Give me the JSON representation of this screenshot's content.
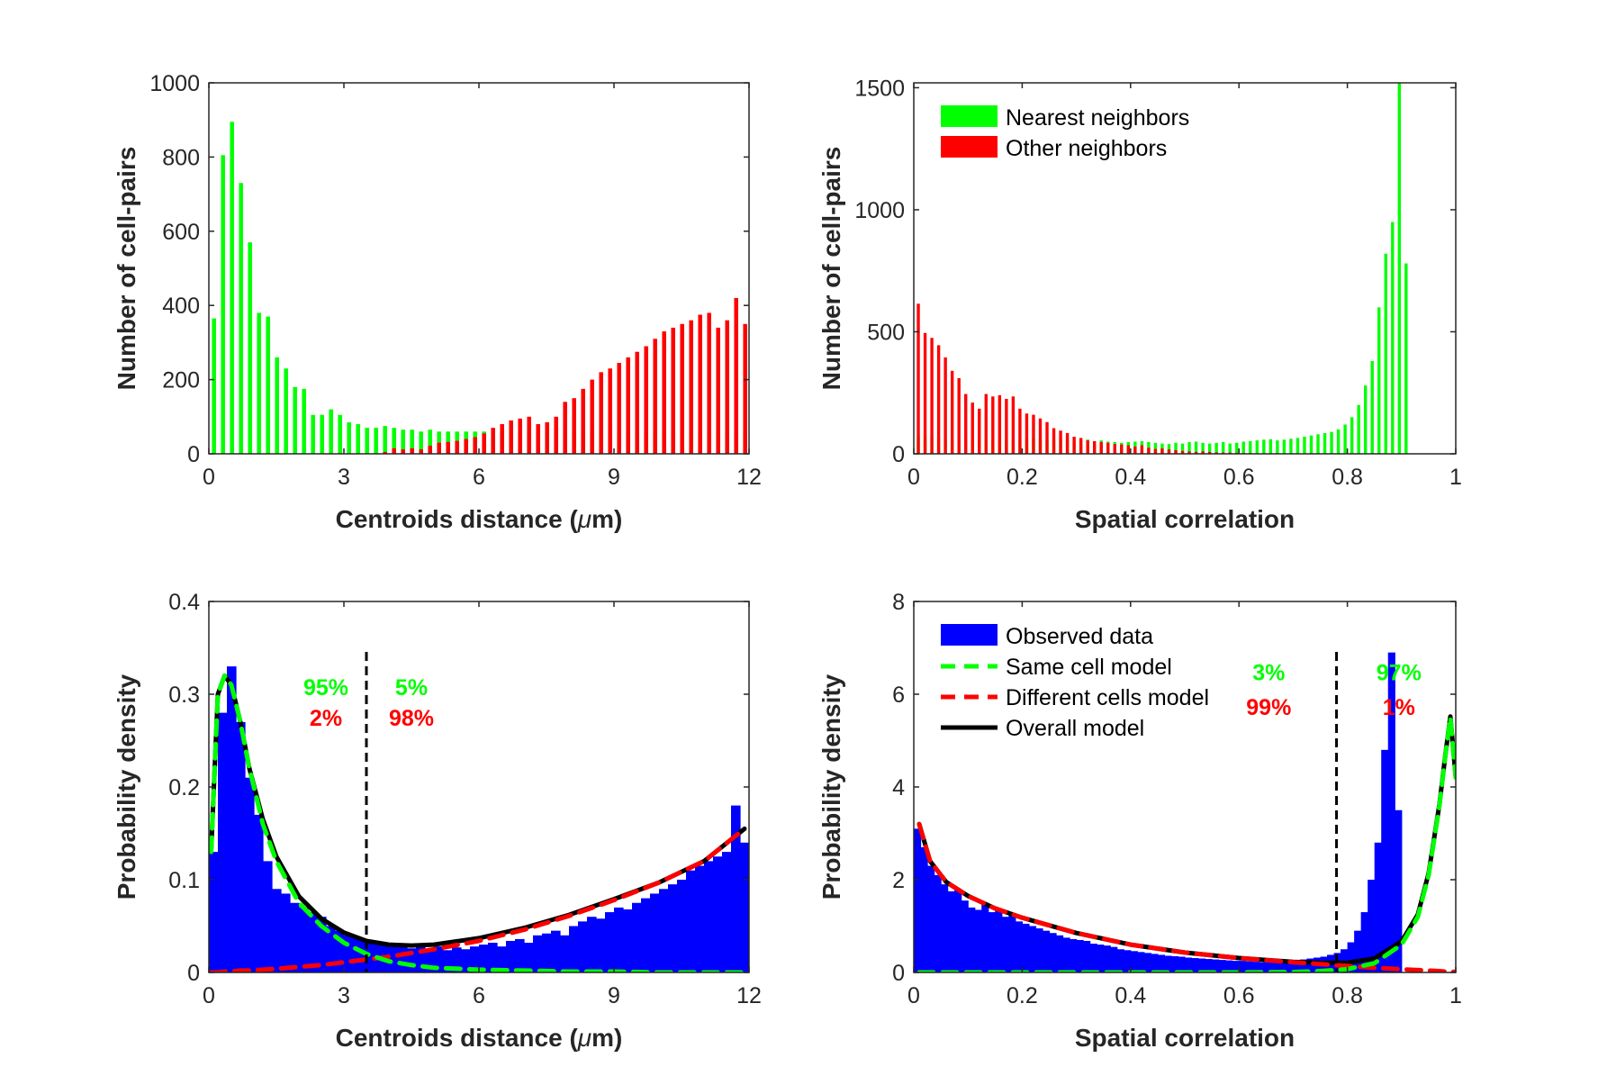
{
  "chart_data": [
    {
      "type": "bar",
      "panel": "top-left",
      "xlabel_prefix": "Centroids distance (",
      "xlabel_mu": "μ",
      "xlabel_suffix": "m)",
      "ylabel": "Number of cell-pairs",
      "xlim": [
        0,
        12
      ],
      "ylim": [
        0,
        1000
      ],
      "xticks": [
        "0",
        "3",
        "6",
        "9",
        "12"
      ],
      "xtick_values": [
        0,
        3,
        6,
        9,
        12
      ],
      "yticks": [
        "0",
        "200",
        "400",
        "600",
        "800",
        "1000"
      ],
      "ytick_values": [
        0,
        200,
        400,
        600,
        800,
        1000
      ],
      "bin_start": 0.06,
      "bin_width": 0.2,
      "series": [
        {
          "color": "#00ff00",
          "values": [
            365,
            805,
            895,
            730,
            570,
            380,
            370,
            260,
            230,
            180,
            175,
            105,
            105,
            120,
            105,
            85,
            80,
            70,
            70,
            75,
            70,
            65,
            65,
            60,
            65,
            60,
            60,
            60,
            60,
            60,
            60,
            60,
            60,
            60,
            60,
            60,
            60,
            60,
            60,
            60,
            65,
            60,
            60,
            60,
            60,
            60,
            60,
            60,
            60,
            60,
            60,
            60,
            60,
            60,
            60,
            60,
            60,
            60,
            60,
            60
          ]
        },
        {
          "color": "#ff0000",
          "values": [
            0,
            0,
            0,
            0,
            0,
            0,
            0,
            0,
            0,
            0,
            0,
            0,
            0,
            0,
            0,
            0,
            0,
            0,
            0,
            5,
            15,
            12,
            15,
            12,
            22,
            30,
            32,
            35,
            40,
            45,
            55,
            70,
            80,
            90,
            95,
            100,
            80,
            85,
            100,
            140,
            150,
            175,
            200,
            220,
            230,
            245,
            260,
            275,
            290,
            310,
            330,
            340,
            350,
            360,
            375,
            380,
            340,
            360,
            420,
            350
          ]
        }
      ]
    },
    {
      "type": "bar",
      "panel": "top-right",
      "xlabel": "Spatial correlation",
      "ylabel": "Number of cell-pairs",
      "xlim": [
        0,
        1
      ],
      "ylim": [
        0,
        1520
      ],
      "xticks": [
        "0",
        "0.2",
        "0.4",
        "0.6",
        "0.8",
        "1"
      ],
      "xtick_values": [
        0,
        0.2,
        0.4,
        0.6,
        0.8,
        1
      ],
      "yticks": [
        "0",
        "500",
        "1000",
        "1500"
      ],
      "ytick_values": [
        0,
        500,
        1000,
        1500
      ],
      "legend": {
        "position": "top-left",
        "entries": [
          {
            "label": "Nearest neighbors",
            "color": "#00ff00"
          },
          {
            "label": "Other neighbors",
            "color": "#ff0000"
          }
        ]
      },
      "bin_start": 0.005,
      "bin_width": 0.0125,
      "series": [
        {
          "name": "Nearest neighbors",
          "color": "#00ff00",
          "values": [
            75,
            72,
            72,
            68,
            60,
            55,
            58,
            62,
            60,
            58,
            62,
            55,
            60,
            55,
            58,
            55,
            60,
            65,
            60,
            58,
            55,
            60,
            55,
            50,
            55,
            58,
            52,
            55,
            50,
            48,
            45,
            48,
            50,
            52,
            48,
            45,
            42,
            40,
            45,
            42,
            48,
            50,
            45,
            42,
            45,
            48,
            42,
            45,
            50,
            52,
            55,
            58,
            60,
            55,
            58,
            62,
            65,
            70,
            75,
            80,
            85,
            90,
            100,
            120,
            150,
            200,
            280,
            380,
            600,
            820,
            950,
            1520,
            780
          ]
        },
        {
          "name": "Other neighbors",
          "color": "#ff0000",
          "values": [
            615,
            495,
            475,
            445,
            395,
            340,
            310,
            245,
            210,
            185,
            245,
            235,
            240,
            225,
            235,
            185,
            165,
            160,
            145,
            130,
            105,
            95,
            85,
            70,
            65,
            55,
            52,
            48,
            45,
            40,
            38,
            35,
            30,
            35,
            25,
            20,
            22,
            18,
            15,
            12,
            10,
            8,
            10,
            8,
            6,
            5,
            5,
            4,
            3,
            3,
            2,
            2,
            2,
            2,
            1,
            1,
            1,
            1,
            1,
            1,
            1,
            1,
            1,
            1,
            1,
            1,
            1,
            0,
            0,
            0,
            0,
            0,
            0
          ]
        }
      ]
    },
    {
      "type": "area",
      "panel": "bottom-left",
      "xlabel_prefix": "Centroids distance (",
      "xlabel_mu": "μ",
      "xlabel_suffix": "m)",
      "ylabel": "Probability density",
      "xlim": [
        0,
        12
      ],
      "ylim": [
        0,
        0.4
      ],
      "xticks": [
        "0",
        "3",
        "6",
        "9",
        "12"
      ],
      "xtick_values": [
        0,
        3,
        6,
        9,
        12
      ],
      "yticks": [
        "0",
        "0.1",
        "0.2",
        "0.3",
        "0.4"
      ],
      "ytick_values": [
        0,
        0.1,
        0.2,
        0.3,
        0.4
      ],
      "threshold_x": 3.5,
      "bin_width": 0.2,
      "observed": [
        0.13,
        0.28,
        0.33,
        0.27,
        0.21,
        0.17,
        0.12,
        0.09,
        0.085,
        0.075,
        0.07,
        0.065,
        0.06,
        0.05,
        0.045,
        0.04,
        0.038,
        0.034,
        0.032,
        0.03,
        0.03,
        0.028,
        0.026,
        0.03,
        0.025,
        0.028,
        0.024,
        0.027,
        0.025,
        0.028,
        0.03,
        0.032,
        0.028,
        0.034,
        0.036,
        0.032,
        0.04,
        0.042,
        0.045,
        0.04,
        0.05,
        0.055,
        0.06,
        0.058,
        0.065,
        0.07,
        0.068,
        0.075,
        0.08,
        0.085,
        0.09,
        0.095,
        0.1,
        0.11,
        0.115,
        0.12,
        0.125,
        0.13,
        0.18,
        0.14
      ],
      "model_x": [
        0.05,
        0.2,
        0.35,
        0.5,
        0.7,
        0.9,
        1.2,
        1.5,
        2,
        2.5,
        3,
        3.5,
        4,
        4.5,
        5,
        6,
        7,
        8,
        9,
        10,
        11,
        11.9
      ],
      "same_cell_model": [
        0.13,
        0.3,
        0.32,
        0.31,
        0.27,
        0.22,
        0.16,
        0.12,
        0.075,
        0.05,
        0.032,
        0.02,
        0.012,
        0.008,
        0.005,
        0.003,
        0.002,
        0.001,
        0.001,
        0,
        0,
        0
      ],
      "different_cells_model": [
        0,
        0,
        0.001,
        0.001,
        0.002,
        0.002,
        0.003,
        0.004,
        0.006,
        0.008,
        0.011,
        0.014,
        0.017,
        0.021,
        0.025,
        0.034,
        0.046,
        0.061,
        0.078,
        0.097,
        0.12,
        0.155
      ],
      "overall_model": [
        0.13,
        0.3,
        0.32,
        0.31,
        0.27,
        0.22,
        0.165,
        0.125,
        0.082,
        0.058,
        0.043,
        0.034,
        0.03,
        0.029,
        0.03,
        0.037,
        0.048,
        0.062,
        0.079,
        0.097,
        0.12,
        0.155
      ],
      "annotations": [
        {
          "text": "95%",
          "color": "#00ff00",
          "x": 2.6,
          "y": 0.299
        },
        {
          "text": "2%",
          "color": "#ff0000",
          "x": 2.6,
          "y": 0.266
        },
        {
          "text": "5%",
          "color": "#00ff00",
          "x": 4.5,
          "y": 0.299
        },
        {
          "text": "98%",
          "color": "#ff0000",
          "x": 4.5,
          "y": 0.266
        }
      ]
    },
    {
      "type": "area",
      "panel": "bottom-right",
      "xlabel": "Spatial correlation",
      "ylabel": "Probability density",
      "xlim": [
        0,
        1
      ],
      "ylim": [
        0,
        8
      ],
      "xticks": [
        "0",
        "0.2",
        "0.4",
        "0.6",
        "0.8",
        "1"
      ],
      "xtick_values": [
        0,
        0.2,
        0.4,
        0.6,
        0.8,
        1
      ],
      "yticks": [
        "0",
        "2",
        "4",
        "6",
        "8"
      ],
      "ytick_values": [
        0,
        2,
        4,
        6,
        8
      ],
      "threshold_x": 0.78,
      "bin_width": 0.0125,
      "legend": {
        "position": "top-left",
        "entries": [
          {
            "label": "Observed data",
            "color": "#0000ff",
            "style": "patch"
          },
          {
            "label": "Same cell model",
            "color": "#00ff00",
            "style": "dashed"
          },
          {
            "label": "Different cells model",
            "color": "#ff0000",
            "style": "dashed"
          },
          {
            "label": "Overall model",
            "color": "#000000",
            "style": "solid"
          }
        ]
      },
      "observed": [
        3.1,
        2.7,
        2.3,
        2.1,
        1.9,
        1.75,
        1.8,
        1.55,
        1.4,
        1.35,
        1.5,
        1.3,
        1.35,
        1.2,
        1.25,
        1.1,
        1.05,
        1.0,
        0.95,
        0.9,
        0.85,
        0.8,
        0.75,
        0.72,
        0.7,
        0.68,
        0.62,
        0.6,
        0.58,
        0.55,
        0.5,
        0.48,
        0.46,
        0.44,
        0.42,
        0.4,
        0.38,
        0.36,
        0.35,
        0.34,
        0.32,
        0.31,
        0.3,
        0.29,
        0.28,
        0.27,
        0.26,
        0.25,
        0.25,
        0.24,
        0.23,
        0.22,
        0.22,
        0.21,
        0.21,
        0.22,
        0.24,
        0.28,
        0.3,
        0.32,
        0.34,
        0.38,
        0.42,
        0.5,
        0.65,
        0.9,
        1.3,
        2.0,
        2.8,
        4.8,
        6.9,
        3.5
      ],
      "model_x": [
        0.01,
        0.03,
        0.06,
        0.1,
        0.15,
        0.2,
        0.3,
        0.4,
        0.5,
        0.6,
        0.7,
        0.75,
        0.8,
        0.85,
        0.9,
        0.93,
        0.95,
        0.97,
        0.98,
        0.99,
        1.0
      ],
      "same_cell_model": [
        0,
        0,
        0,
        0,
        0,
        0,
        0,
        0,
        0,
        0,
        0.01,
        0.03,
        0.07,
        0.2,
        0.6,
        1.2,
        2.1,
        3.6,
        4.6,
        5.5,
        4.2
      ],
      "different_cells_model": [
        3.2,
        2.4,
        1.95,
        1.65,
        1.38,
        1.18,
        0.85,
        0.6,
        0.43,
        0.31,
        0.22,
        0.18,
        0.14,
        0.1,
        0.07,
        0.05,
        0.04,
        0.03,
        0.02,
        0.02,
        0.01
      ],
      "overall_model": [
        3.2,
        2.4,
        1.95,
        1.65,
        1.38,
        1.18,
        0.85,
        0.6,
        0.43,
        0.31,
        0.23,
        0.21,
        0.21,
        0.3,
        0.67,
        1.25,
        2.14,
        3.63,
        4.62,
        5.52,
        4.21
      ],
      "annotations": [
        {
          "text": "3%",
          "color": "#00ff00",
          "x": 0.655,
          "y": 6.3
        },
        {
          "text": "99%",
          "color": "#ff0000",
          "x": 0.655,
          "y": 5.55
        },
        {
          "text": "97%",
          "color": "#00ff00",
          "x": 0.895,
          "y": 6.3
        },
        {
          "text": "1%",
          "color": "#ff0000",
          "x": 0.895,
          "y": 5.55
        }
      ]
    }
  ]
}
